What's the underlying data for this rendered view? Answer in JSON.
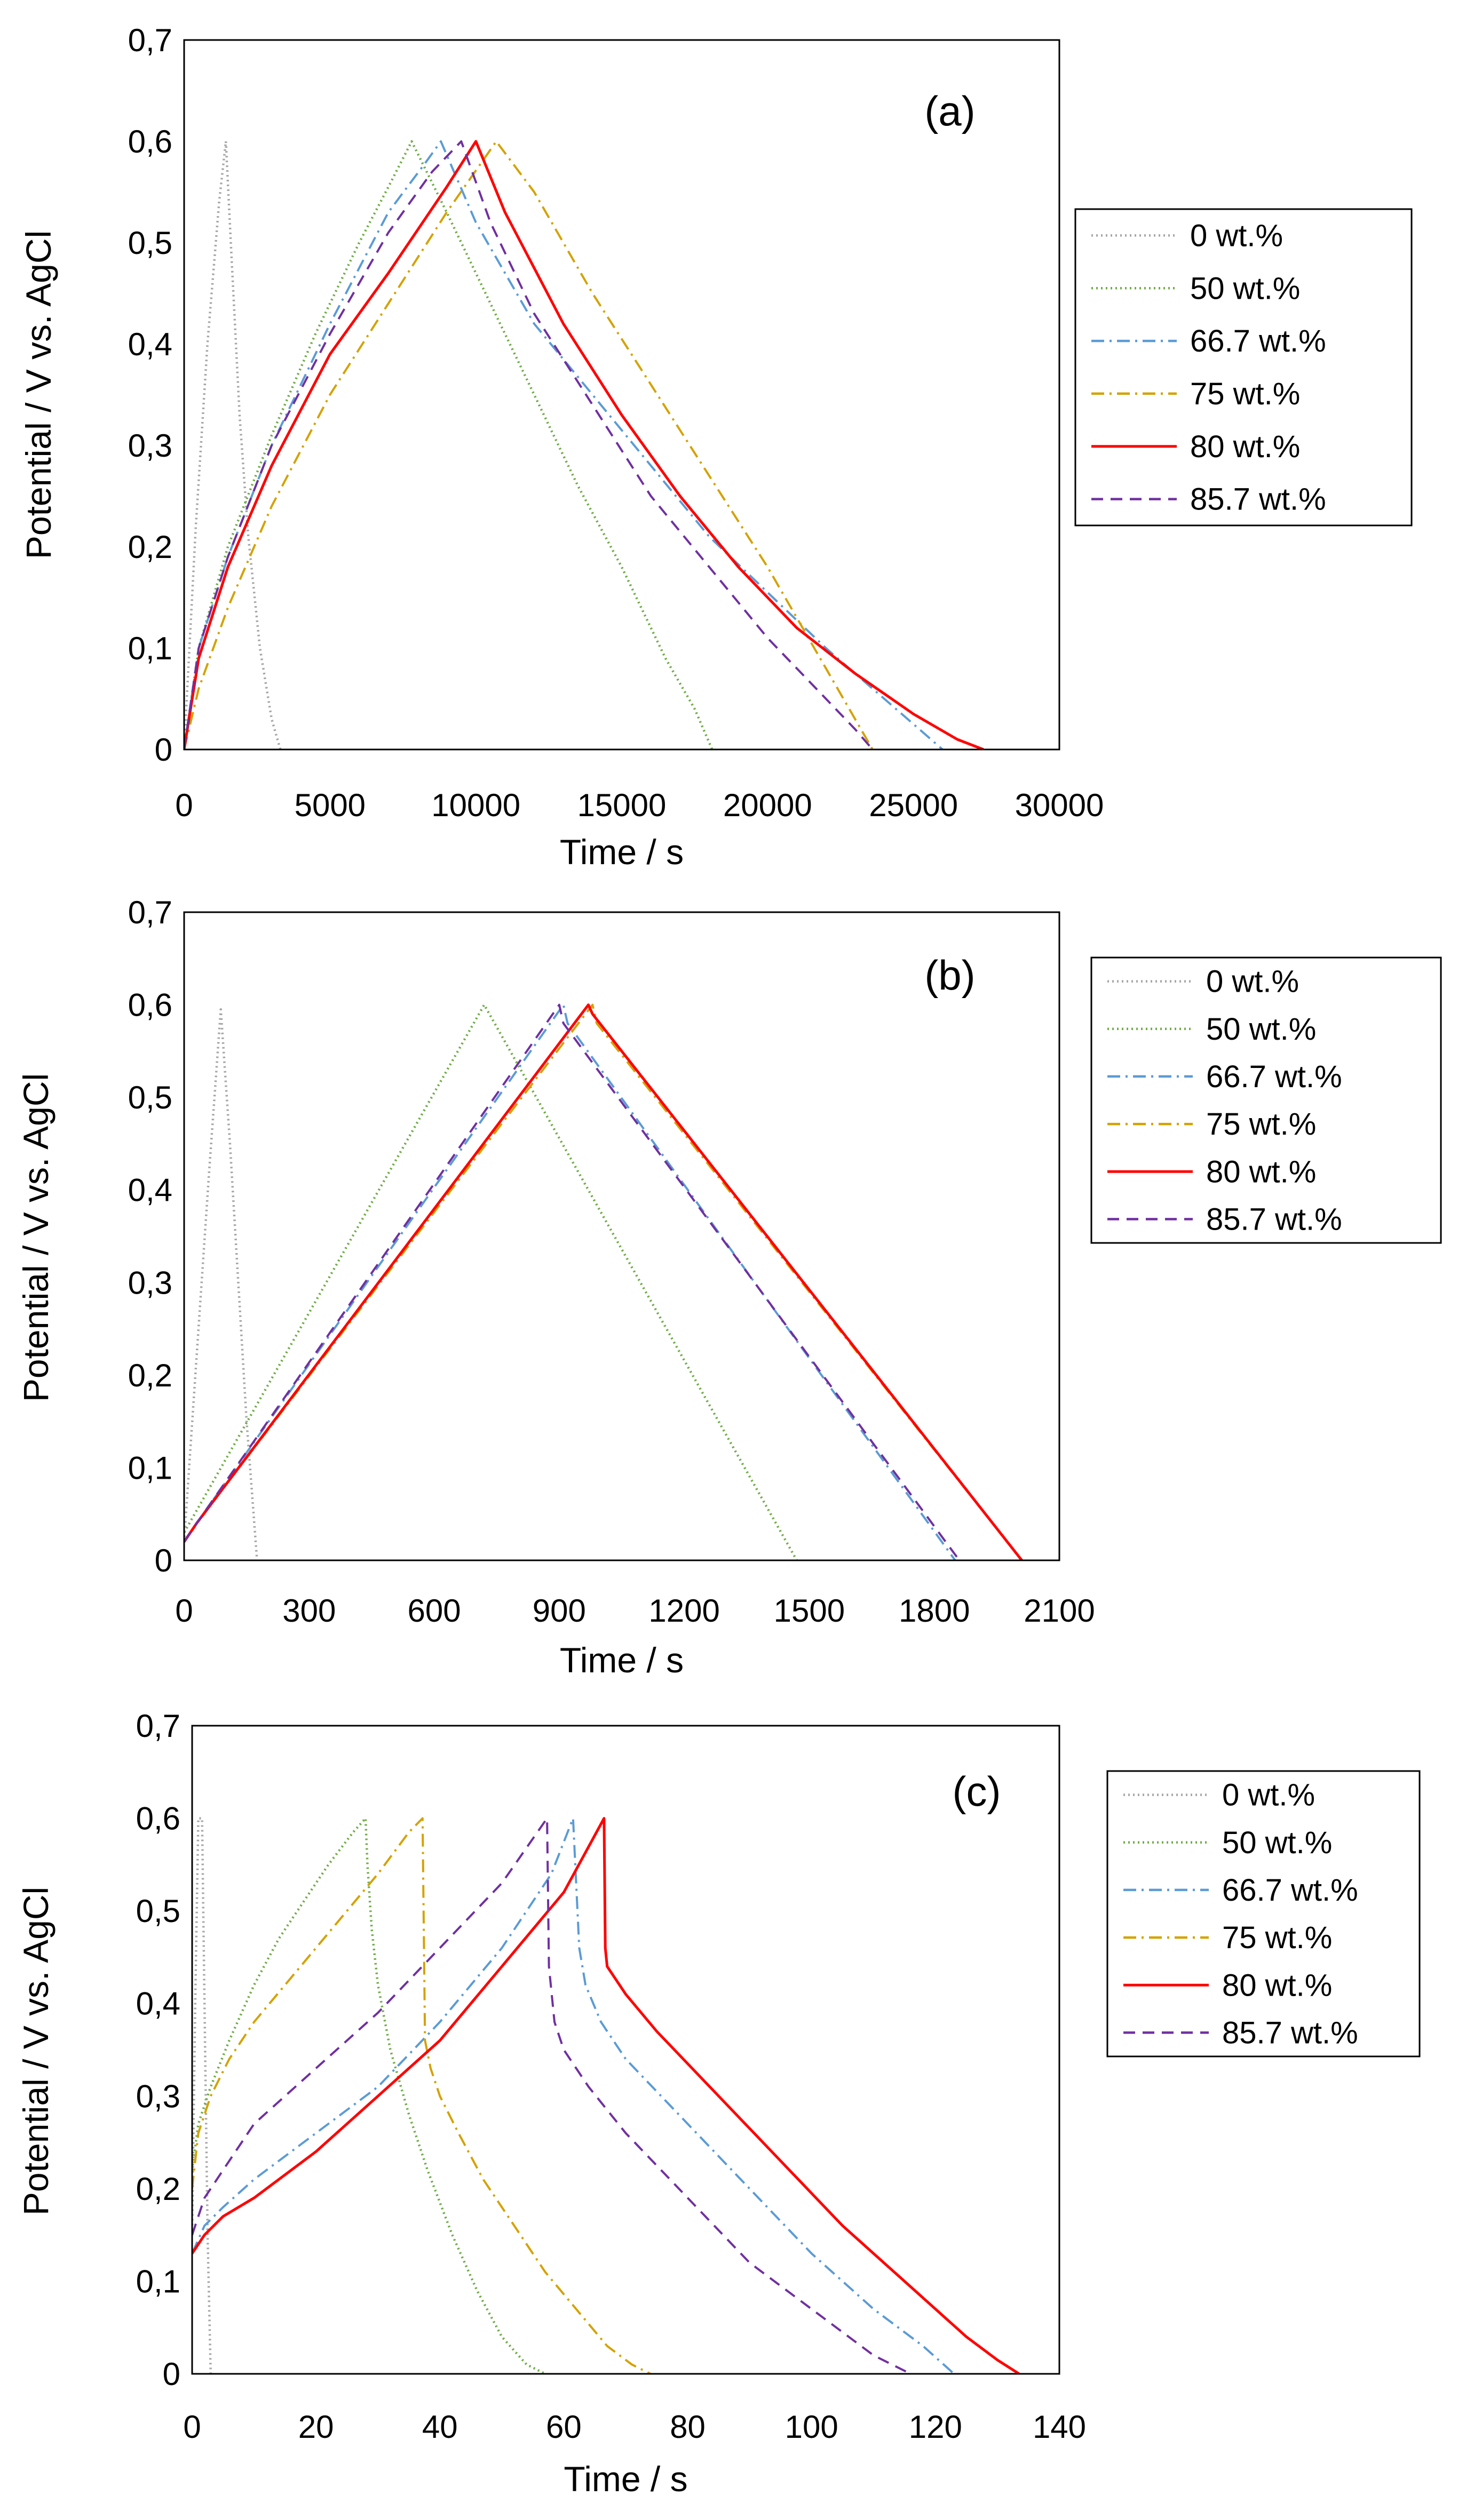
{
  "figure": {
    "description": "Galvanostatic charge-discharge curves, three panels (a), (b), (c)"
  },
  "chart_data": [
    {
      "type": "line",
      "panel_label": "(a)",
      "xlabel": "Time / s",
      "ylabel": "Potential / V vs. AgCl",
      "xlim": [
        0,
        30000
      ],
      "ylim": [
        0,
        0.7
      ],
      "xticks": [
        0,
        5000,
        10000,
        15000,
        20000,
        25000,
        30000
      ],
      "xtick_labels": [
        "0",
        "5000",
        "10000",
        "15000",
        "20000",
        "25000",
        "30000"
      ],
      "yticks": [
        0,
        0.1,
        0.2,
        0.3,
        0.4,
        0.5,
        0.6,
        0.7
      ],
      "ytick_labels": [
        "0",
        "0,1",
        "0,2",
        "0,3",
        "0,4",
        "0,5",
        "0,6",
        "0,7"
      ],
      "legend_position": "right",
      "series": [
        {
          "name": "0 wt.%",
          "color": "#a6a6a6",
          "dash": "dotted",
          "x": [
            0,
            400,
            800,
            1200,
            1430,
            1600,
            1900,
            2200,
            2600,
            3000,
            3300
          ],
          "y": [
            0,
            0.22,
            0.4,
            0.54,
            0.6,
            0.5,
            0.33,
            0.21,
            0.1,
            0.03,
            0
          ]
        },
        {
          "name": "50 wt.%",
          "color": "#70ad47",
          "dash": "dotted",
          "x": [
            0,
            500,
            1500,
            3000,
            4500,
            6000,
            7000,
            7800,
            9000,
            10500,
            12000,
            13500,
            15000,
            16500,
            17500,
            18100
          ],
          "y": [
            0,
            0.1,
            0.2,
            0.31,
            0.41,
            0.5,
            0.555,
            0.6,
            0.53,
            0.44,
            0.35,
            0.26,
            0.18,
            0.09,
            0.04,
            0
          ]
        },
        {
          "name": "66.7 wt.%",
          "color": "#5b9bd5",
          "dash": "dashdot",
          "x": [
            0,
            500,
            1500,
            3000,
            5000,
            7000,
            8300,
            8800,
            10000,
            12000,
            14000,
            16000,
            18000,
            20000,
            22000,
            24000,
            25200,
            26000
          ],
          "y": [
            0,
            0.1,
            0.19,
            0.3,
            0.42,
            0.53,
            0.58,
            0.6,
            0.52,
            0.42,
            0.35,
            0.28,
            0.21,
            0.155,
            0.1,
            0.05,
            0.02,
            0
          ]
        },
        {
          "name": "75 wt.%",
          "color": "#d4a200",
          "dash": "dashdot",
          "x": [
            0,
            500,
            1500,
            3000,
            5000,
            7000,
            9000,
            10700,
            12000,
            14000,
            16000,
            18000,
            20000,
            22000,
            23000,
            23600
          ],
          "y": [
            0,
            0.06,
            0.14,
            0.24,
            0.35,
            0.44,
            0.53,
            0.6,
            0.55,
            0.45,
            0.36,
            0.27,
            0.18,
            0.08,
            0.03,
            0
          ]
        },
        {
          "name": "80 wt.%",
          "color": "#ff0000",
          "dash": "solid",
          "x": [
            0,
            500,
            1500,
            3000,
            5000,
            7000,
            9000,
            10000,
            11000,
            13000,
            15000,
            17000,
            19000,
            21000,
            23000,
            25000,
            26500,
            27400
          ],
          "y": [
            0,
            0.09,
            0.18,
            0.28,
            0.39,
            0.47,
            0.555,
            0.6,
            0.53,
            0.42,
            0.33,
            0.25,
            0.18,
            0.12,
            0.075,
            0.035,
            0.01,
            0
          ]
        },
        {
          "name": "85.7 wt.%",
          "color": "#7030a0",
          "dash": "dashed",
          "x": [
            0,
            500,
            1500,
            3000,
            5000,
            7000,
            8500,
            9500,
            10500,
            12000,
            14000,
            16000,
            18000,
            20000,
            22000,
            23000,
            23600
          ],
          "y": [
            0,
            0.1,
            0.19,
            0.3,
            0.41,
            0.51,
            0.57,
            0.6,
            0.52,
            0.43,
            0.34,
            0.25,
            0.18,
            0.11,
            0.05,
            0.02,
            0
          ]
        }
      ]
    },
    {
      "type": "line",
      "panel_label": "(b)",
      "xlabel": "Time / s",
      "ylabel": "Potential / V vs. AgCl",
      "xlim": [
        0,
        2100
      ],
      "ylim": [
        0,
        0.7
      ],
      "xticks": [
        0,
        300,
        600,
        900,
        1200,
        1500,
        1800,
        2100
      ],
      "xtick_labels": [
        "0",
        "300",
        "600",
        "900",
        "1200",
        "1500",
        "1800",
        "2100"
      ],
      "yticks": [
        0,
        0.1,
        0.2,
        0.3,
        0.4,
        0.5,
        0.6,
        0.7
      ],
      "ytick_labels": [
        "0",
        "0,1",
        "0,2",
        "0,3",
        "0,4",
        "0,5",
        "0,6",
        "0,7"
      ],
      "legend_position": "right",
      "series": [
        {
          "name": "0 wt.%",
          "color": "#a6a6a6",
          "dash": "dotted",
          "x": [
            0,
            30,
            60,
            88,
            110,
            130,
            150,
            175
          ],
          "y": [
            0.02,
            0.22,
            0.42,
            0.595,
            0.45,
            0.3,
            0.15,
            0
          ]
        },
        {
          "name": "50 wt.%",
          "color": "#70ad47",
          "dash": "dotted",
          "x": [
            0,
            720,
            1470
          ],
          "y": [
            0.03,
            0.6,
            0
          ]
        },
        {
          "name": "66.7 wt.%",
          "color": "#5b9bd5",
          "dash": "dashdot",
          "x": [
            0,
            30,
            910,
            920,
            1850
          ],
          "y": [
            0.02,
            0.04,
            0.6,
            0.58,
            0
          ]
        },
        {
          "name": "75 wt.%",
          "color": "#d4a200",
          "dash": "dashdot",
          "x": [
            0,
            30,
            980,
            990,
            2010
          ],
          "y": [
            0.02,
            0.04,
            0.6,
            0.58,
            0
          ]
        },
        {
          "name": "80 wt.%",
          "color": "#ff0000",
          "dash": "solid",
          "x": [
            0,
            30,
            970,
            980,
            2010
          ],
          "y": [
            0.02,
            0.04,
            0.6,
            0.59,
            0
          ]
        },
        {
          "name": "85.7 wt.%",
          "color": "#7030a0",
          "dash": "dashed",
          "x": [
            0,
            30,
            900,
            910,
            1860
          ],
          "y": [
            0.02,
            0.04,
            0.6,
            0.58,
            0
          ]
        }
      ]
    },
    {
      "type": "line",
      "panel_label": "(c)",
      "xlabel": "Time / s",
      "ylabel": "Potential / V vs. AgCl",
      "xlim": [
        0,
        140
      ],
      "ylim": [
        0,
        0.7
      ],
      "xticks": [
        0,
        20,
        40,
        60,
        80,
        100,
        120,
        140
      ],
      "xtick_labels": [
        "0",
        "20",
        "40",
        "60",
        "80",
        "100",
        "120",
        "140"
      ],
      "yticks": [
        0,
        0.1,
        0.2,
        0.3,
        0.4,
        0.5,
        0.6,
        0.7
      ],
      "ytick_labels": [
        "0",
        "0,1",
        "0,2",
        "0,3",
        "0,4",
        "0,5",
        "0,6",
        "0,7"
      ],
      "legend_position": "right",
      "series": [
        {
          "name": "0 wt.%",
          "color": "#a6a6a6",
          "dash": "dotted",
          "x": [
            0,
            0.5,
            1.0,
            1.6,
            2.0,
            2.5,
            3.0
          ],
          "y": [
            0.15,
            0.4,
            0.6,
            0.6,
            0.4,
            0.15,
            0
          ]
        },
        {
          "name": "50 wt.%",
          "color": "#70ad47",
          "dash": "dotted",
          "x": [
            0,
            1,
            3,
            6,
            10,
            14,
            18,
            22,
            26,
            28,
            28.3,
            29,
            30,
            32,
            35,
            38,
            42,
            46,
            50,
            54,
            57
          ],
          "y": [
            0.22,
            0.27,
            0.31,
            0.36,
            0.42,
            0.47,
            0.51,
            0.55,
            0.585,
            0.6,
            0.55,
            0.48,
            0.42,
            0.35,
            0.28,
            0.22,
            0.15,
            0.09,
            0.04,
            0.01,
            0
          ]
        },
        {
          "name": "66.7 wt.%",
          "color": "#5b9bd5",
          "dash": "dashdot",
          "x": [
            0,
            2,
            5,
            10,
            20,
            30,
            40,
            50,
            58,
            61.5,
            62.5,
            63.5,
            66,
            70,
            80,
            90,
            100,
            110,
            118,
            123
          ],
          "y": [
            0.13,
            0.16,
            0.18,
            0.21,
            0.26,
            0.31,
            0.38,
            0.46,
            0.54,
            0.6,
            0.46,
            0.42,
            0.38,
            0.34,
            0.27,
            0.2,
            0.13,
            0.07,
            0.03,
            0
          ]
        },
        {
          "name": "75 wt.%",
          "color": "#d4a200",
          "dash": "dashdot",
          "x": [
            0,
            1,
            3,
            6,
            10,
            15,
            20,
            25,
            30,
            35,
            37.2,
            37.6,
            38.5,
            40,
            43,
            47,
            52,
            57,
            62,
            67,
            71,
            74
          ],
          "y": [
            0.2,
            0.26,
            0.3,
            0.34,
            0.38,
            0.42,
            0.46,
            0.5,
            0.54,
            0.585,
            0.6,
            0.36,
            0.33,
            0.3,
            0.26,
            0.21,
            0.16,
            0.11,
            0.07,
            0.03,
            0.01,
            0
          ]
        },
        {
          "name": "80 wt.%",
          "color": "#ff0000",
          "dash": "solid",
          "x": [
            0,
            2,
            5,
            10,
            20,
            30,
            40,
            50,
            60,
            66.5,
            66.7,
            67,
            70,
            75,
            85,
            95,
            105,
            115,
            125,
            130,
            133.5
          ],
          "y": [
            0.13,
            0.15,
            0.17,
            0.19,
            0.24,
            0.3,
            0.36,
            0.44,
            0.52,
            0.6,
            0.46,
            0.44,
            0.41,
            0.37,
            0.3,
            0.23,
            0.16,
            0.1,
            0.04,
            0.015,
            0
          ]
        },
        {
          "name": "85.7 wt.%",
          "color": "#7030a0",
          "dash": "dashed",
          "x": [
            0,
            2,
            5,
            10,
            20,
            30,
            40,
            50,
            57.3,
            57.6,
            58.5,
            60,
            64,
            70,
            80,
            90,
            100,
            110,
            116
          ],
          "y": [
            0.15,
            0.19,
            0.22,
            0.27,
            0.33,
            0.39,
            0.46,
            0.53,
            0.6,
            0.44,
            0.38,
            0.35,
            0.31,
            0.26,
            0.19,
            0.12,
            0.07,
            0.02,
            0
          ]
        }
      ]
    }
  ]
}
